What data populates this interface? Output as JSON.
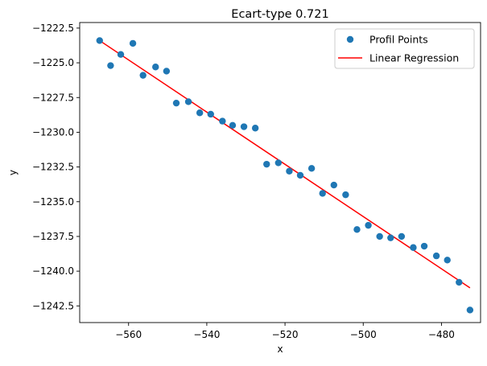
{
  "chart_data": {
    "type": "scatter",
    "title": "Ecart-type 0.721",
    "xlabel": "x",
    "ylabel": "y",
    "xlim": [
      -572.5,
      -470
    ],
    "ylim": [
      -1243.7,
      -1222.1
    ],
    "xticks": [
      -560,
      -540,
      -520,
      -500,
      -480
    ],
    "yticks": [
      -1222.5,
      -1225.0,
      -1227.5,
      -1230.0,
      -1232.5,
      -1235.0,
      -1237.5,
      -1240.0,
      -1242.5
    ],
    "xtick_labels": [
      "−560",
      "−540",
      "−520",
      "−500",
      "−480"
    ],
    "ytick_labels": [
      "−1222.5",
      "−1225.0",
      "−1227.5",
      "−1230.0",
      "−1232.5",
      "−1235.0",
      "−1237.5",
      "−1240.0",
      "−1242.5"
    ],
    "grid": false,
    "legend_position": "top-right",
    "series": [
      {
        "name": "Profil Points",
        "type": "scatter",
        "color": "#1f77b4",
        "points": [
          [
            -567.4,
            -1223.4
          ],
          [
            -564.6,
            -1225.2
          ],
          [
            -562.0,
            -1224.4
          ],
          [
            -558.9,
            -1223.6
          ],
          [
            -556.3,
            -1225.9
          ],
          [
            -553.1,
            -1225.3
          ],
          [
            -550.3,
            -1225.6
          ],
          [
            -547.8,
            -1227.9
          ],
          [
            -544.7,
            -1227.8
          ],
          [
            -541.8,
            -1228.6
          ],
          [
            -539.0,
            -1228.7
          ],
          [
            -536.0,
            -1229.2
          ],
          [
            -533.4,
            -1229.5
          ],
          [
            -530.5,
            -1229.6
          ],
          [
            -527.6,
            -1229.7
          ],
          [
            -524.7,
            -1232.3
          ],
          [
            -521.7,
            -1232.2
          ],
          [
            -518.9,
            -1232.8
          ],
          [
            -516.1,
            -1233.1
          ],
          [
            -513.2,
            -1232.6
          ],
          [
            -510.4,
            -1234.4
          ],
          [
            -507.5,
            -1233.8
          ],
          [
            -504.5,
            -1234.5
          ],
          [
            -501.6,
            -1237.0
          ],
          [
            -498.7,
            -1236.7
          ],
          [
            -495.8,
            -1237.5
          ],
          [
            -493.0,
            -1237.6
          ],
          [
            -490.2,
            -1237.5
          ],
          [
            -487.2,
            -1238.3
          ],
          [
            -484.4,
            -1238.2
          ],
          [
            -481.3,
            -1238.9
          ],
          [
            -478.5,
            -1239.2
          ],
          [
            -475.5,
            -1240.8
          ],
          [
            -472.7,
            -1242.8
          ]
        ]
      },
      {
        "name": "Linear Regression",
        "type": "line",
        "color": "#ff0000",
        "points": [
          [
            -567.4,
            -1223.4
          ],
          [
            -472.7,
            -1241.2
          ]
        ]
      }
    ]
  }
}
